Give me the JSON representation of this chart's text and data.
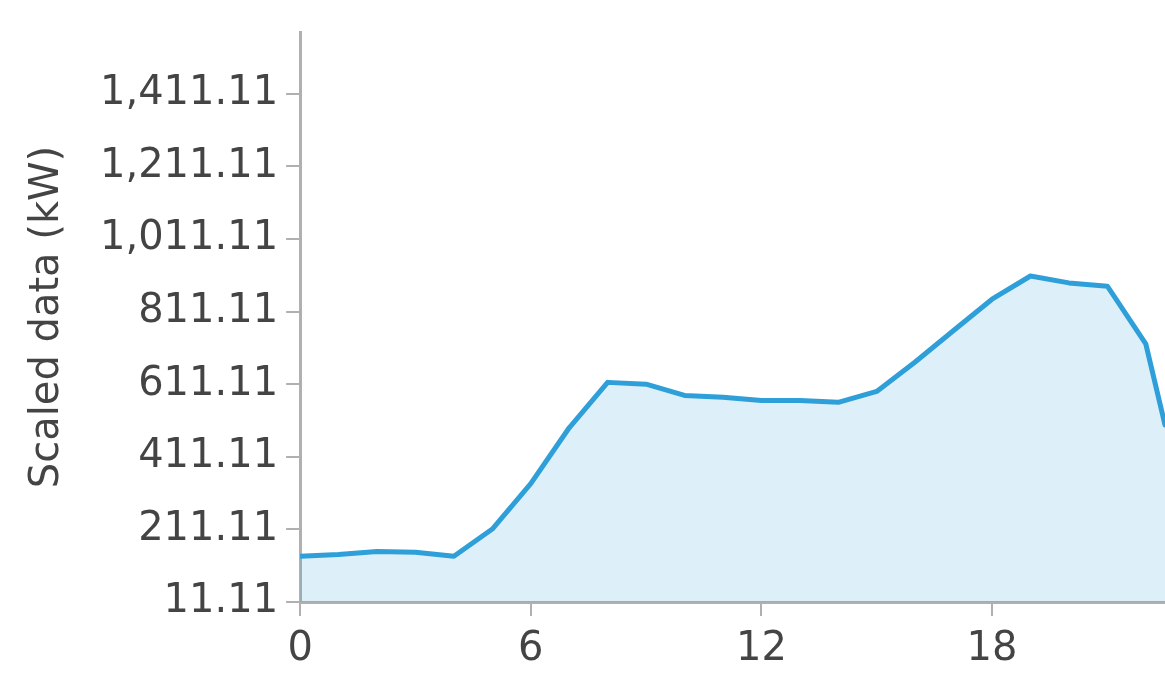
{
  "chart_data": {
    "type": "area",
    "ylabel": "Scaled data (kW)",
    "x": [
      0,
      1,
      2,
      3,
      4,
      5,
      6,
      7,
      8,
      9,
      10,
      11,
      12,
      13,
      14,
      15,
      16,
      17,
      18,
      19,
      20,
      21,
      22,
      22.5
    ],
    "series": [
      {
        "color": "#2e9fd9",
        "values": [
          137,
          142,
          150,
          148,
          137,
          212,
          337,
          491,
          616,
          611,
          580,
          575,
          566,
          566,
          561,
          591,
          672,
          759,
          845,
          909,
          890,
          881,
          722,
          499
        ]
      }
    ],
    "xlim": [
      0,
      22.5
    ],
    "xticks": [
      0,
      6,
      12,
      18
    ],
    "ylim": [
      11.11,
      1581
    ],
    "yticks": [
      {
        "value": 11.11,
        "label": "11.11"
      },
      {
        "value": 211.11,
        "label": "211.11"
      },
      {
        "value": 411.11,
        "label": "411.11"
      },
      {
        "value": 611.11,
        "label": "611.11"
      },
      {
        "value": 811.11,
        "label": "811.11"
      },
      {
        "value": 1011.11,
        "label": "1,011.11"
      },
      {
        "value": 1211.11,
        "label": "1,211.11"
      },
      {
        "value": 1411.11,
        "label": "1,411.11"
      }
    ],
    "grid": false,
    "legend": false
  }
}
